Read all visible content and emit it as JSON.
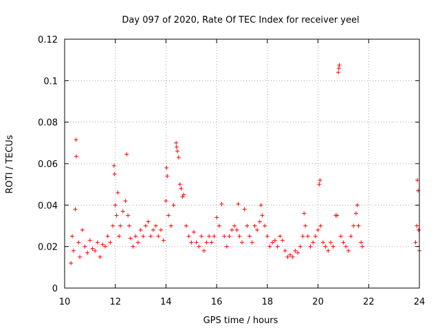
{
  "chart_data": {
    "type": "scatter",
    "title": "Day 097 of 2020, Rate Of TEC Index for receiver yeel",
    "xlabel": "GPS time / hours",
    "ylabel": "ROTI / TECUs",
    "xlim": [
      10,
      24
    ],
    "ylim": [
      0,
      0.12
    ],
    "xticks": [
      10,
      12,
      14,
      16,
      18,
      20,
      22,
      24
    ],
    "yticks": [
      0,
      0.02,
      0.04,
      0.06,
      0.08,
      0.1,
      0.12
    ],
    "xtick_labels": [
      "10",
      "12",
      "14",
      "16",
      "18",
      "20",
      "22",
      "24"
    ],
    "ytick_labels": [
      "0",
      "0.02",
      "0.04",
      "0.06",
      "0.08",
      "0.1",
      "0.12"
    ],
    "grid": true,
    "marker": "+",
    "color": "#ff0000",
    "series": [
      {
        "name": "ROTI",
        "points": [
          [
            10.25,
            0.012
          ],
          [
            10.3,
            0.025
          ],
          [
            10.35,
            0.018
          ],
          [
            10.42,
            0.038
          ],
          [
            10.45,
            0.0715
          ],
          [
            10.46,
            0.0635
          ],
          [
            10.55,
            0.022
          ],
          [
            10.6,
            0.015
          ],
          [
            10.7,
            0.028
          ],
          [
            10.8,
            0.02
          ],
          [
            10.9,
            0.017
          ],
          [
            11.0,
            0.023
          ],
          [
            11.1,
            0.019
          ],
          [
            11.2,
            0.018
          ],
          [
            11.3,
            0.022
          ],
          [
            11.4,
            0.015
          ],
          [
            11.5,
            0.021
          ],
          [
            11.6,
            0.02
          ],
          [
            11.7,
            0.025
          ],
          [
            11.8,
            0.022
          ],
          [
            11.9,
            0.03
          ],
          [
            11.95,
            0.059
          ],
          [
            11.97,
            0.055
          ],
          [
            12.0,
            0.04
          ],
          [
            12.05,
            0.035
          ],
          [
            12.1,
            0.046
          ],
          [
            12.15,
            0.025
          ],
          [
            12.2,
            0.03
          ],
          [
            12.3,
            0.037
          ],
          [
            12.4,
            0.042
          ],
          [
            12.45,
            0.0645
          ],
          [
            12.5,
            0.035
          ],
          [
            12.55,
            0.03
          ],
          [
            12.6,
            0.024
          ],
          [
            12.7,
            0.02
          ],
          [
            12.8,
            0.025
          ],
          [
            12.9,
            0.022
          ],
          [
            13.0,
            0.028
          ],
          [
            13.1,
            0.025
          ],
          [
            13.2,
            0.03
          ],
          [
            13.3,
            0.032
          ],
          [
            13.4,
            0.025
          ],
          [
            13.5,
            0.028
          ],
          [
            13.6,
            0.03
          ],
          [
            13.7,
            0.025
          ],
          [
            13.8,
            0.028
          ],
          [
            13.9,
            0.023
          ],
          [
            14.0,
            0.042
          ],
          [
            14.02,
            0.058
          ],
          [
            14.05,
            0.054
          ],
          [
            14.1,
            0.035
          ],
          [
            14.2,
            0.03
          ],
          [
            14.3,
            0.04
          ],
          [
            14.4,
            0.07
          ],
          [
            14.42,
            0.068
          ],
          [
            14.45,
            0.066
          ],
          [
            14.5,
            0.063
          ],
          [
            14.55,
            0.05
          ],
          [
            14.6,
            0.048
          ],
          [
            14.65,
            0.044
          ],
          [
            14.7,
            0.045
          ],
          [
            14.8,
            0.03
          ],
          [
            14.9,
            0.025
          ],
          [
            15.0,
            0.022
          ],
          [
            15.1,
            0.027
          ],
          [
            15.2,
            0.022
          ],
          [
            15.3,
            0.02
          ],
          [
            15.4,
            0.025
          ],
          [
            15.5,
            0.018
          ],
          [
            15.6,
            0.022
          ],
          [
            15.7,
            0.025
          ],
          [
            15.8,
            0.022
          ],
          [
            15.9,
            0.025
          ],
          [
            16.0,
            0.034
          ],
          [
            16.1,
            0.03
          ],
          [
            16.2,
            0.0405
          ],
          [
            16.3,
            0.025
          ],
          [
            16.4,
            0.02
          ],
          [
            16.5,
            0.025
          ],
          [
            16.6,
            0.028
          ],
          [
            16.7,
            0.03
          ],
          [
            16.8,
            0.028
          ],
          [
            16.85,
            0.0405
          ],
          [
            16.9,
            0.025
          ],
          [
            17.0,
            0.022
          ],
          [
            17.1,
            0.038
          ],
          [
            17.2,
            0.03
          ],
          [
            17.3,
            0.025
          ],
          [
            17.4,
            0.022
          ],
          [
            17.5,
            0.03
          ],
          [
            17.6,
            0.028
          ],
          [
            17.7,
            0.032
          ],
          [
            17.75,
            0.04
          ],
          [
            17.8,
            0.035
          ],
          [
            17.9,
            0.03
          ],
          [
            18.0,
            0.025
          ],
          [
            18.1,
            0.02
          ],
          [
            18.2,
            0.022
          ],
          [
            18.3,
            0.023
          ],
          [
            18.4,
            0.02
          ],
          [
            18.5,
            0.025
          ],
          [
            18.6,
            0.023
          ],
          [
            18.7,
            0.018
          ],
          [
            18.8,
            0.015
          ],
          [
            18.9,
            0.016
          ],
          [
            19.0,
            0.015
          ],
          [
            19.1,
            0.018
          ],
          [
            19.2,
            0.017
          ],
          [
            19.3,
            0.02
          ],
          [
            19.4,
            0.025
          ],
          [
            19.45,
            0.036
          ],
          [
            19.5,
            0.03
          ],
          [
            19.6,
            0.025
          ],
          [
            19.7,
            0.02
          ],
          [
            19.8,
            0.022
          ],
          [
            19.9,
            0.025
          ],
          [
            20.0,
            0.028
          ],
          [
            20.05,
            0.05
          ],
          [
            20.08,
            0.052
          ],
          [
            20.1,
            0.03
          ],
          [
            20.2,
            0.022
          ],
          [
            20.3,
            0.02
          ],
          [
            20.4,
            0.018
          ],
          [
            20.5,
            0.022
          ],
          [
            20.6,
            0.02
          ],
          [
            20.7,
            0.035
          ],
          [
            20.75,
            0.035
          ],
          [
            20.8,
            0.104
          ],
          [
            20.82,
            0.106
          ],
          [
            20.84,
            0.1075
          ],
          [
            20.9,
            0.025
          ],
          [
            21.0,
            0.022
          ],
          [
            21.1,
            0.02
          ],
          [
            21.2,
            0.018
          ],
          [
            21.3,
            0.025
          ],
          [
            21.4,
            0.03
          ],
          [
            21.5,
            0.036
          ],
          [
            21.55,
            0.04
          ],
          [
            21.6,
            0.03
          ],
          [
            21.7,
            0.022
          ],
          [
            21.75,
            0.02
          ],
          [
            23.85,
            0.022
          ],
          [
            23.9,
            0.03
          ],
          [
            23.92,
            0.052
          ],
          [
            23.95,
            0.047
          ],
          [
            23.97,
            0.028
          ],
          [
            24.0,
            0.018
          ]
        ]
      }
    ]
  }
}
